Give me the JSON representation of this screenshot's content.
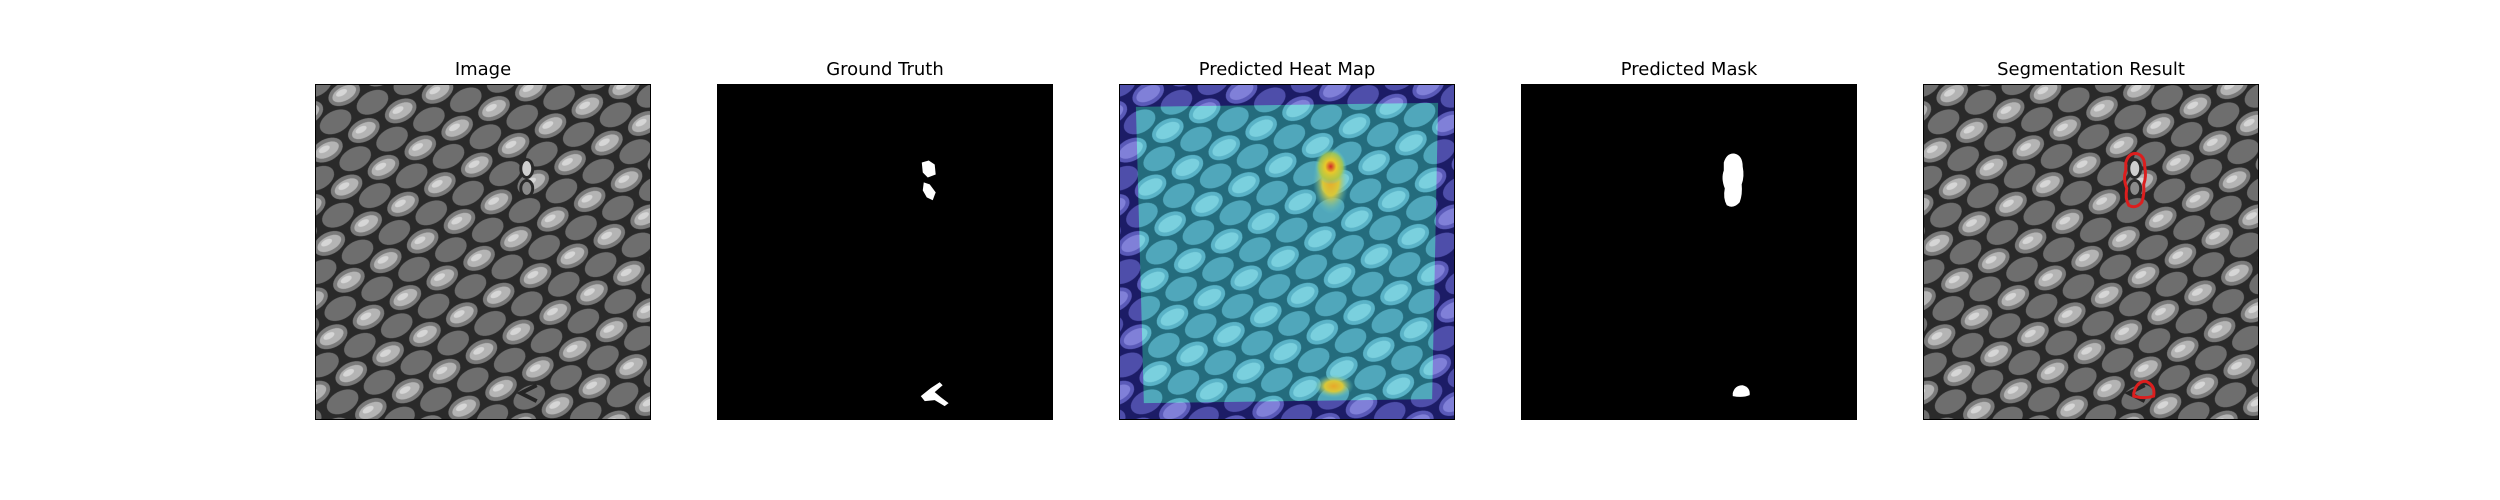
{
  "figure": {
    "background": "#ffffff",
    "panels": [
      {
        "id": "image",
        "title": "Image"
      },
      {
        "id": "ground-truth",
        "title": "Ground Truth"
      },
      {
        "id": "heatmap",
        "title": "Predicted Heat Map"
      },
      {
        "id": "mask",
        "title": "Predicted Mask"
      },
      {
        "id": "segmentation",
        "title": "Segmentation Result"
      }
    ]
  },
  "colors": {
    "texture_dark": "#1e1e1e",
    "texture_light": "#a8a8a8",
    "mask_background": "#000000",
    "mask_foreground": "#ffffff",
    "heat_low": "#2a2ab4",
    "heat_mid": "#5ac8d2",
    "heat_high": "#e8c82a",
    "heat_peak": "#d22828",
    "contour": "#dc1e1e"
  }
}
